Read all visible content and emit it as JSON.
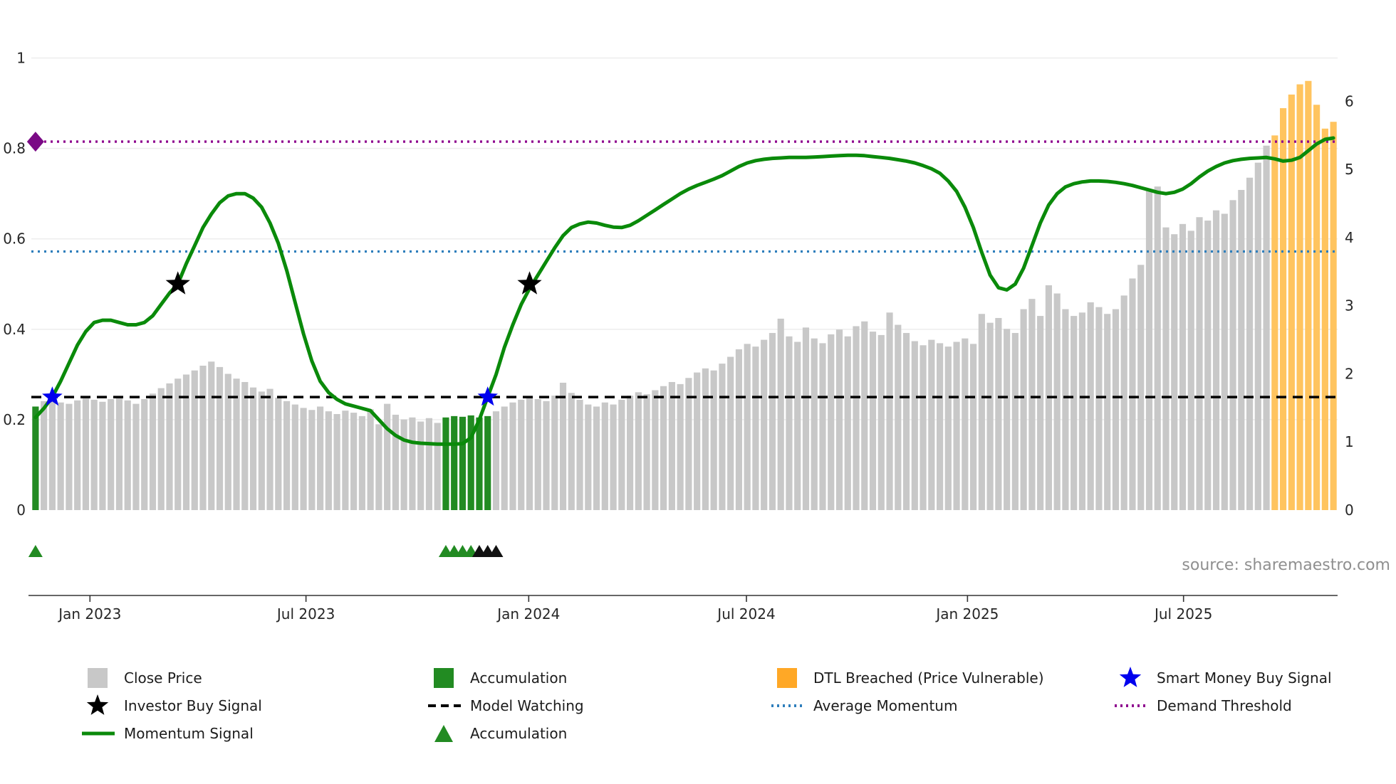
{
  "source": {
    "text": "source: sharemaestro.com"
  },
  "colors": {
    "close_bar": "#c8c8c8",
    "accumulation": "#228B22",
    "dtl_breached": "#ffc45f",
    "dtl_legend": "#FFA826",
    "momentum_line": "#0a8a0a",
    "model_watching": "#000000",
    "average_momentum": "#2e7ebc",
    "demand_threshold": "#8e008e",
    "smart_money": "#0000ee",
    "investor": "#000000",
    "triangle_black": "#111111",
    "axis_text": "#262626",
    "grid": "#ededed"
  },
  "chart_data": {
    "type": "bar",
    "title": "",
    "x_unit": "week",
    "n_weeks": 156,
    "left_axis": {
      "tick_values": [
        0,
        0.2,
        0.4,
        0.6,
        0.8,
        1
      ],
      "tick_labels": [
        "0",
        "0.2",
        "0.4",
        "0.6",
        "0.8",
        "1"
      ],
      "max": 1.1
    },
    "right_axis": {
      "tick_values": [
        0,
        1,
        2,
        3,
        4,
        5,
        6
      ],
      "tick_labels": [
        "0",
        "1",
        "2",
        "3",
        "4",
        "5",
        "6"
      ],
      "max": 7.3
    },
    "x_axis": {
      "tick_weeks": [
        6.5,
        32.3,
        58.9,
        84.9,
        111.3,
        137.1
      ],
      "tick_labels": [
        "Jan 2023",
        "Jul 2023",
        "Jan 2024",
        "Jul 2024",
        "Jan 2025",
        "Jul 2025"
      ]
    },
    "series": {
      "close_price": [
        1.52,
        1.6,
        1.63,
        1.58,
        1.56,
        1.61,
        1.64,
        1.62,
        1.59,
        1.63,
        1.66,
        1.61,
        1.56,
        1.63,
        1.71,
        1.79,
        1.86,
        1.93,
        1.99,
        2.05,
        2.12,
        2.18,
        2.1,
        2.0,
        1.93,
        1.88,
        1.8,
        1.74,
        1.78,
        1.65,
        1.6,
        1.55,
        1.5,
        1.47,
        1.52,
        1.45,
        1.41,
        1.46,
        1.43,
        1.38,
        1.48,
        1.26,
        1.56,
        1.4,
        1.33,
        1.36,
        1.3,
        1.35,
        1.28,
        1.36,
        1.38,
        1.37,
        1.39,
        1.36,
        1.38,
        1.45,
        1.52,
        1.58,
        1.62,
        1.66,
        1.63,
        1.6,
        1.68,
        1.87,
        1.72,
        1.62,
        1.55,
        1.52,
        1.58,
        1.55,
        1.62,
        1.68,
        1.73,
        1.7,
        1.76,
        1.82,
        1.88,
        1.85,
        1.94,
        2.02,
        2.08,
        2.05,
        2.15,
        2.25,
        2.36,
        2.44,
        2.4,
        2.5,
        2.6,
        2.81,
        2.55,
        2.47,
        2.68,
        2.52,
        2.45,
        2.58,
        2.65,
        2.55,
        2.7,
        2.77,
        2.62,
        2.57,
        2.9,
        2.72,
        2.6,
        2.48,
        2.42,
        2.5,
        2.45,
        2.4,
        2.47,
        2.52,
        2.44,
        2.88,
        2.75,
        2.82,
        2.66,
        2.6,
        2.95,
        3.1,
        2.85,
        3.3,
        3.18,
        2.95,
        2.85,
        2.9,
        3.05,
        2.98,
        2.88,
        2.95,
        3.15,
        3.4,
        3.6,
        4.7,
        4.75,
        4.15,
        4.05,
        4.2,
        4.1,
        4.3,
        4.25,
        4.4,
        4.35,
        4.55,
        4.7,
        4.88,
        5.1,
        5.35,
        5.5,
        5.9,
        6.1,
        6.25,
        6.3,
        5.95,
        5.6,
        5.7
      ],
      "momentum": [
        0.205,
        0.225,
        0.25,
        0.285,
        0.325,
        0.365,
        0.395,
        0.415,
        0.42,
        0.42,
        0.415,
        0.41,
        0.41,
        0.415,
        0.43,
        0.455,
        0.48,
        0.5,
        0.545,
        0.585,
        0.625,
        0.655,
        0.68,
        0.695,
        0.7,
        0.7,
        0.69,
        0.67,
        0.635,
        0.59,
        0.53,
        0.46,
        0.39,
        0.33,
        0.285,
        0.26,
        0.245,
        0.235,
        0.23,
        0.225,
        0.22,
        0.2,
        0.18,
        0.165,
        0.155,
        0.15,
        0.148,
        0.147,
        0.146,
        0.146,
        0.146,
        0.147,
        0.16,
        0.2,
        0.25,
        0.3,
        0.36,
        0.41,
        0.455,
        0.49,
        0.52,
        0.55,
        0.58,
        0.607,
        0.625,
        0.633,
        0.637,
        0.635,
        0.63,
        0.626,
        0.625,
        0.63,
        0.64,
        0.652,
        0.664,
        0.676,
        0.688,
        0.7,
        0.71,
        0.718,
        0.725,
        0.732,
        0.74,
        0.75,
        0.76,
        0.768,
        0.773,
        0.776,
        0.778,
        0.779,
        0.78,
        0.78,
        0.78,
        0.781,
        0.782,
        0.783,
        0.784,
        0.785,
        0.785,
        0.784,
        0.782,
        0.78,
        0.778,
        0.775,
        0.772,
        0.768,
        0.762,
        0.755,
        0.745,
        0.728,
        0.705,
        0.67,
        0.625,
        0.57,
        0.52,
        0.492,
        0.487,
        0.5,
        0.535,
        0.585,
        0.635,
        0.675,
        0.7,
        0.715,
        0.722,
        0.726,
        0.728,
        0.728,
        0.727,
        0.725,
        0.722,
        0.718,
        0.713,
        0.708,
        0.703,
        0.7,
        0.703,
        0.71,
        0.722,
        0.737,
        0.75,
        0.76,
        0.768,
        0.773,
        0.776,
        0.778,
        0.779,
        0.78,
        0.777,
        0.772,
        0.774,
        0.78,
        0.795,
        0.81,
        0.82,
        0.823
      ]
    },
    "bar_categories": {
      "accumulation": [
        0,
        49,
        50,
        51,
        52,
        53,
        54
      ],
      "dtl_breached": [
        148,
        149,
        150,
        151,
        152,
        153,
        154,
        155
      ]
    },
    "reference_lines": {
      "model_watching": 0.25,
      "average_momentum": 0.572,
      "demand_threshold": 0.815
    },
    "markers": {
      "smart_money_buy": [
        {
          "week": 2,
          "value": 0.25
        },
        {
          "week": 54,
          "value": 0.25
        }
      ],
      "investor_buy": [
        {
          "week": 17,
          "value": 0.5
        },
        {
          "week": 59,
          "value": 0.5
        }
      ],
      "accumulation_triangles": [
        {
          "week": 0,
          "color": "green"
        },
        {
          "week": 49,
          "color": "green"
        },
        {
          "week": 50,
          "color": "green"
        },
        {
          "week": 51,
          "color": "green"
        },
        {
          "week": 52,
          "color": "green"
        },
        {
          "week": 53,
          "color": "black"
        },
        {
          "week": 54,
          "color": "black"
        },
        {
          "week": 55,
          "color": "black"
        }
      ],
      "demand_marker": {
        "week": 0,
        "value": 0.815
      }
    },
    "legend_position": "bottom",
    "grid": "faint-horizontal"
  },
  "legend": {
    "columns": [
      {
        "items": [
          {
            "label": "Close Price",
            "swatch": "rect",
            "color_key": "close_bar",
            "icon": "gray-square-icon",
            "slug": "close-price"
          },
          {
            "label": "Investor Buy Signal",
            "swatch": "star",
            "color_key": "investor",
            "icon": "black-star-icon",
            "slug": "investor-buy-signal"
          },
          {
            "label": "Momentum Signal",
            "swatch": "line",
            "color_key": "momentum_line",
            "icon": "green-line-icon",
            "slug": "momentum-signal"
          }
        ]
      },
      {
        "items": [
          {
            "label": "Accumulation",
            "swatch": "rect",
            "color_key": "accumulation",
            "icon": "green-square-icon",
            "slug": "accumulation-bars"
          },
          {
            "label": "Model Watching",
            "swatch": "dashed",
            "color_key": "model_watching",
            "icon": "black-dashed-line-icon",
            "slug": "model-watching"
          },
          {
            "label": "Accumulation",
            "swatch": "triangle",
            "color_key": "accumulation",
            "icon": "green-triangle-icon",
            "slug": "accumulation-triangle"
          }
        ]
      },
      {
        "items": [
          {
            "label": "DTL Breached (Price Vulnerable)",
            "swatch": "rect",
            "color_key": "dtl_legend",
            "icon": "orange-square-icon",
            "slug": "dtl-breached"
          },
          {
            "label": "Average Momentum",
            "swatch": "dotted",
            "color_key": "average_momentum",
            "icon": "blue-dotted-line-icon",
            "slug": "average-momentum"
          }
        ]
      },
      {
        "items": [
          {
            "label": "Smart Money Buy Signal",
            "swatch": "star",
            "color_key": "smart_money",
            "icon": "blue-star-icon",
            "slug": "smart-money-buy-signal"
          },
          {
            "label": "Demand Threshold",
            "swatch": "dotted",
            "color_key": "demand_threshold",
            "icon": "purple-dotted-line-icon",
            "slug": "demand-threshold"
          }
        ]
      }
    ]
  }
}
